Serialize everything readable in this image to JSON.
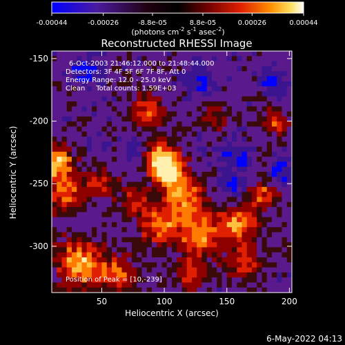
{
  "colorbar": {
    "tick_labels": [
      "-0.00044",
      "-0.00026",
      "-8.8e-05",
      "8.8e-05",
      "0.00026",
      "0.00044"
    ],
    "tick_values": [
      -0.00044,
      -0.00026,
      -8.8e-05,
      8.8e-05,
      0.00026,
      0.00044
    ],
    "range": [
      -0.00044,
      0.00044
    ],
    "unit_label": {
      "pre": "(photons cm",
      "sup1": "-2",
      "mid1": " s",
      "sup2": "-1",
      "mid2": " asec",
      "sup3": "-2",
      "post": ")"
    }
  },
  "chart_data": {
    "type": "heatmap",
    "title": "Reconstructed RHESSI Image",
    "xlabel": "Heliocentric X (arcsec)",
    "ylabel": "Heliocentric Y (arcsec)",
    "xlim": [
      10,
      202
    ],
    "ylim": [
      -337,
      -144
    ],
    "xticks": [
      50,
      100,
      150,
      200
    ],
    "yticks": [
      -150,
      -200,
      -250,
      -300
    ],
    "annotations": [
      "6-Oct-2003 21:46:12.000 to 21:48:44.000",
      "Detectors: 3F 4F 5F 6F 7F 8F, Att 0",
      "Energy Range: 12.0 - 25.0 keV",
      "Clean     Total counts: 1.59E+03"
    ],
    "peak_label": "Position of Peak = [10,-239]",
    "colormap": [
      "#0000ff",
      "#3b1590",
      "#5a1a8c",
      "#3a0a0a",
      "#8e0000",
      "#e02000",
      "#ff7a00",
      "#ffc040",
      "#fff0b0"
    ]
  },
  "footer": {
    "timestamp": "6-May-2022 04:13"
  }
}
